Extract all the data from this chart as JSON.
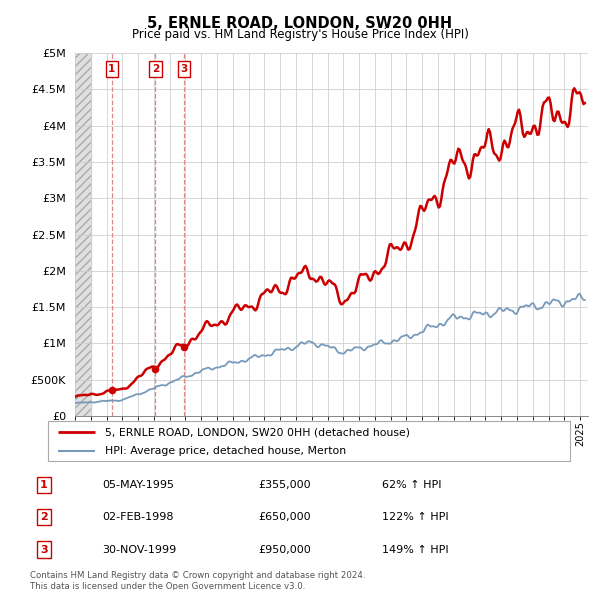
{
  "title": "5, ERNLE ROAD, LONDON, SW20 0HH",
  "subtitle": "Price paid vs. HM Land Registry's House Price Index (HPI)",
  "ylim": [
    0,
    5000000
  ],
  "yticks": [
    0,
    500000,
    1000000,
    1500000,
    2000000,
    2500000,
    3000000,
    3500000,
    4000000,
    4500000,
    5000000
  ],
  "ytick_labels": [
    "£0",
    "£500K",
    "£1M",
    "£1.5M",
    "£2M",
    "£2.5M",
    "£3M",
    "£3.5M",
    "£4M",
    "£4.5M",
    "£5M"
  ],
  "xlim_start": 1993.0,
  "xlim_end": 2025.5,
  "purchases": [
    {
      "date_num": 1995.34,
      "price": 355000,
      "label": "1"
    },
    {
      "date_num": 1998.09,
      "price": 650000,
      "label": "2"
    },
    {
      "date_num": 1999.92,
      "price": 950000,
      "label": "3"
    }
  ],
  "purchase_table": [
    {
      "num": "1",
      "date": "05-MAY-1995",
      "price": "£355,000",
      "hpi": "62% ↑ HPI"
    },
    {
      "num": "2",
      "date": "02-FEB-1998",
      "price": "£650,000",
      "hpi": "122% ↑ HPI"
    },
    {
      "num": "3",
      "date": "30-NOV-1999",
      "price": "£950,000",
      "hpi": "149% ↑ HPI"
    }
  ],
  "legend_line1": "5, ERNLE ROAD, LONDON, SW20 0HH (detached house)",
  "legend_line2": "HPI: Average price, detached house, Merton",
  "footnote": "Contains HM Land Registry data © Crown copyright and database right 2024.\nThis data is licensed under the Open Government Licence v3.0.",
  "grid_color": "#cccccc",
  "hpi_color": "#7799bb",
  "price_color": "#cc0000",
  "vline_color": "#dd8888",
  "hatch_end": 1994.0
}
